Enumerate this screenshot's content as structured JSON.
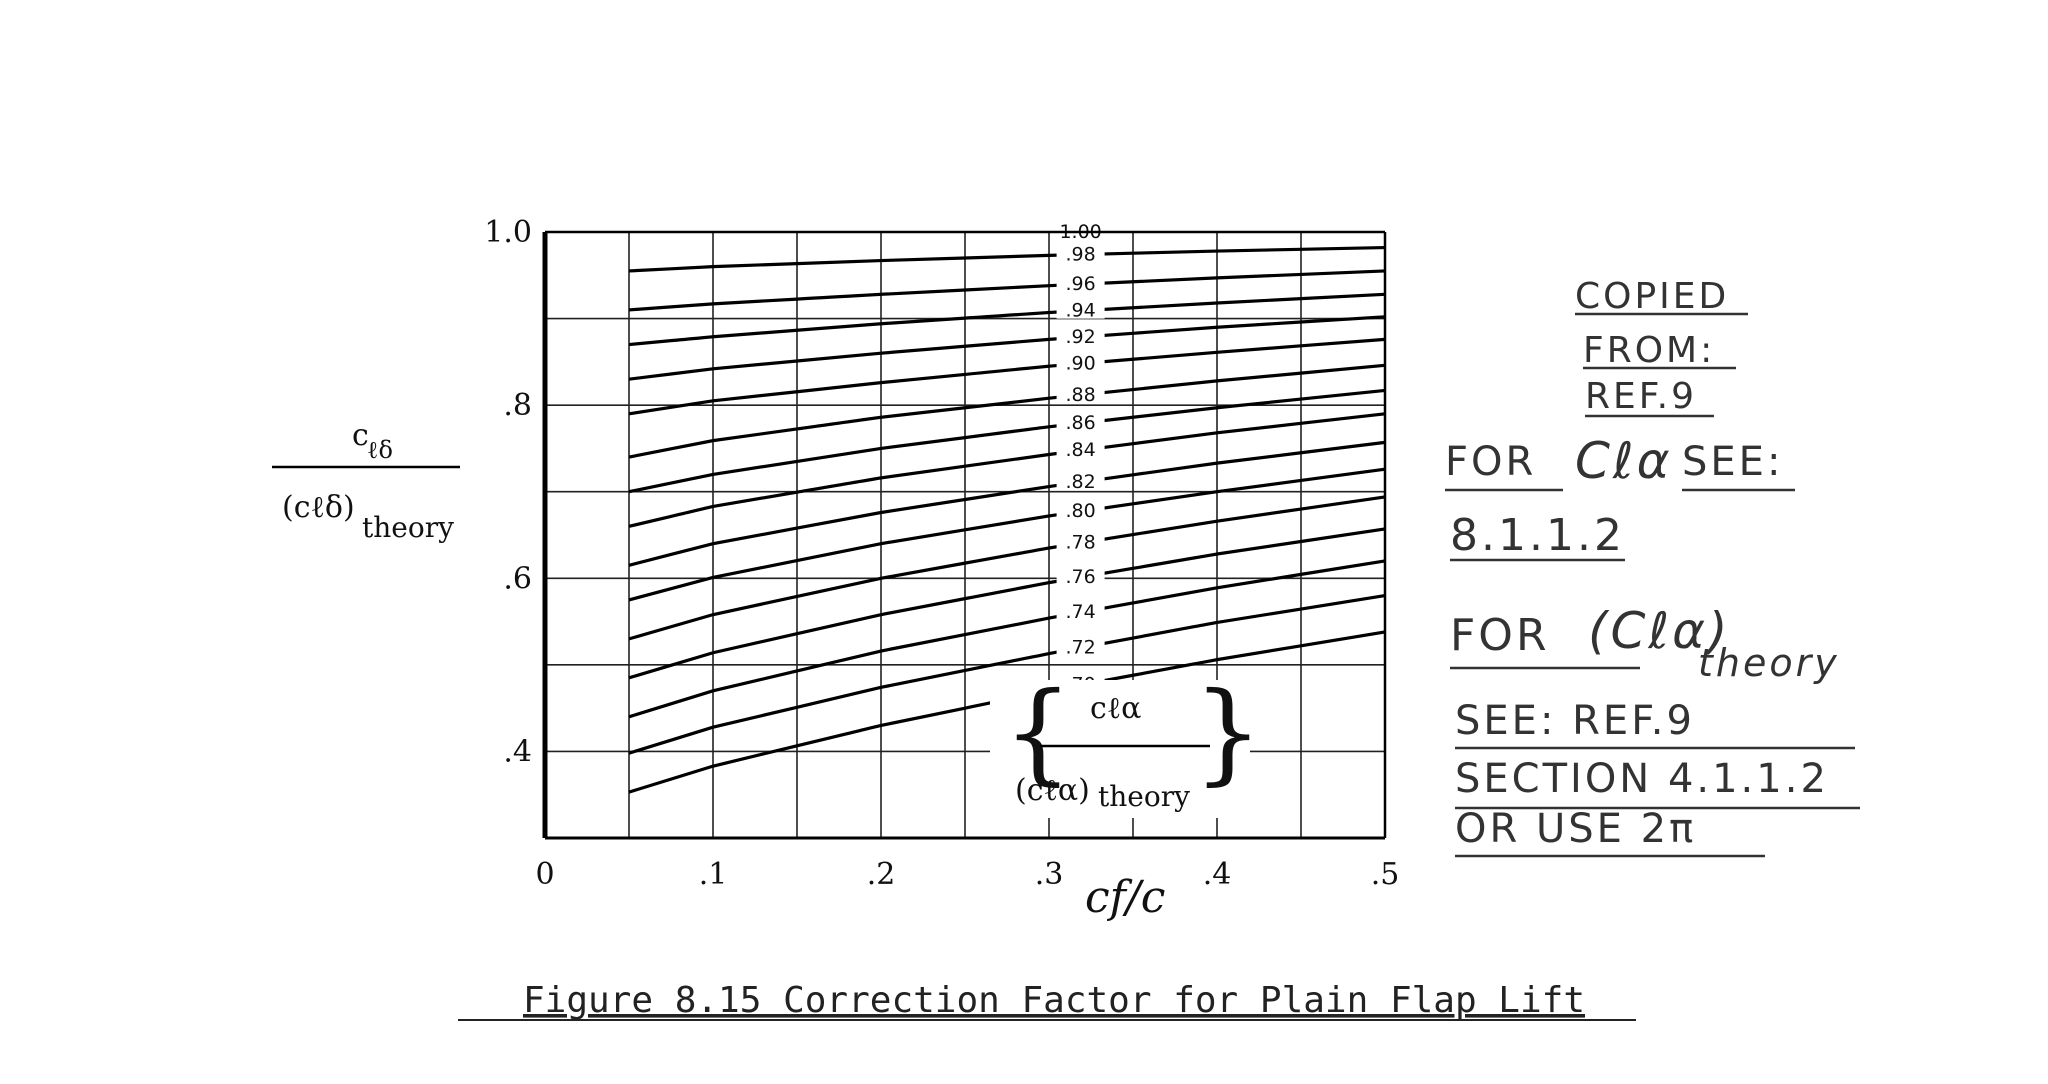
{
  "chart_data": {
    "type": "line",
    "y_label": {
      "numerator": "c",
      "numerator_sub": "ℓδ",
      "denominator": "(cℓδ)",
      "denominator_sub": "theory"
    },
    "x_label": "cf/c",
    "x_ticks": [
      "0",
      ".1",
      ".2",
      ".3",
      ".4",
      ".5"
    ],
    "y_ticks": [
      "1.0",
      ".8",
      ".6",
      ".4"
    ],
    "xlim": [
      0,
      0.5
    ],
    "ylim": [
      0.3,
      1.0
    ],
    "grid": true,
    "parameter_label": {
      "numerator": "cℓα",
      "denominator": "(cℓα)",
      "denominator_sub": "theory"
    },
    "series": [
      {
        "name": "1.00",
        "x": [
          0.05,
          0.5
        ],
        "y": [
          1.0,
          1.0
        ]
      },
      {
        "name": ".98",
        "x": [
          0.05,
          0.1,
          0.2,
          0.3,
          0.4,
          0.5
        ],
        "y": [
          0.955,
          0.96,
          0.967,
          0.973,
          0.978,
          0.982
        ]
      },
      {
        "name": ".96",
        "x": [
          0.05,
          0.1,
          0.2,
          0.3,
          0.4,
          0.5
        ],
        "y": [
          0.91,
          0.917,
          0.928,
          0.938,
          0.947,
          0.955
        ]
      },
      {
        "name": ".94",
        "x": [
          0.05,
          0.1,
          0.2,
          0.3,
          0.4,
          0.5
        ],
        "y": [
          0.87,
          0.879,
          0.894,
          0.907,
          0.918,
          0.928
        ]
      },
      {
        "name": ".92",
        "x": [
          0.05,
          0.1,
          0.2,
          0.3,
          0.4,
          0.5
        ],
        "y": [
          0.83,
          0.842,
          0.86,
          0.876,
          0.89,
          0.902
        ]
      },
      {
        "name": ".90",
        "x": [
          0.05,
          0.1,
          0.2,
          0.3,
          0.4,
          0.5
        ],
        "y": [
          0.79,
          0.805,
          0.826,
          0.845,
          0.861,
          0.876
        ]
      },
      {
        "name": ".88",
        "x": [
          0.05,
          0.1,
          0.2,
          0.3,
          0.4,
          0.5
        ],
        "y": [
          0.74,
          0.759,
          0.786,
          0.808,
          0.828,
          0.846
        ]
      },
      {
        "name": ".86",
        "x": [
          0.05,
          0.1,
          0.2,
          0.3,
          0.4,
          0.5
        ],
        "y": [
          0.7,
          0.72,
          0.75,
          0.775,
          0.797,
          0.817
        ]
      },
      {
        "name": ".84",
        "x": [
          0.05,
          0.1,
          0.2,
          0.3,
          0.4,
          0.5
        ],
        "y": [
          0.66,
          0.683,
          0.716,
          0.743,
          0.768,
          0.79
        ]
      },
      {
        "name": ".82",
        "x": [
          0.05,
          0.1,
          0.2,
          0.3,
          0.4,
          0.5
        ],
        "y": [
          0.615,
          0.64,
          0.676,
          0.706,
          0.733,
          0.757
        ]
      },
      {
        "name": ".80",
        "x": [
          0.05,
          0.1,
          0.2,
          0.3,
          0.4,
          0.5
        ],
        "y": [
          0.575,
          0.601,
          0.64,
          0.672,
          0.7,
          0.726
        ]
      },
      {
        "name": ".78",
        "x": [
          0.05,
          0.1,
          0.2,
          0.3,
          0.4,
          0.5
        ],
        "y": [
          0.53,
          0.558,
          0.6,
          0.635,
          0.666,
          0.694
        ]
      },
      {
        "name": ".76",
        "x": [
          0.05,
          0.1,
          0.2,
          0.3,
          0.4,
          0.5
        ],
        "y": [
          0.485,
          0.514,
          0.558,
          0.595,
          0.628,
          0.657
        ]
      },
      {
        "name": ".74",
        "x": [
          0.05,
          0.1,
          0.2,
          0.3,
          0.4,
          0.5
        ],
        "y": [
          0.44,
          0.47,
          0.516,
          0.554,
          0.589,
          0.62
        ]
      },
      {
        "name": ".72",
        "x": [
          0.05,
          0.1,
          0.2,
          0.3,
          0.4,
          0.5
        ],
        "y": [
          0.398,
          0.428,
          0.474,
          0.513,
          0.549,
          0.58
        ]
      },
      {
        "name": ".70",
        "x": [
          0.05,
          0.1,
          0.2,
          0.3,
          0.4,
          0.5
        ],
        "y": [
          0.353,
          0.383,
          0.43,
          0.47,
          0.506,
          0.538
        ]
      }
    ]
  },
  "notes": {
    "copied_line1": "COPIED",
    "copied_line2": "FROM:",
    "copied_line3": "REF.9",
    "for_cla_prefix": "FOR",
    "for_cla_symbol": "Cℓα",
    "for_cla_suffix": "SEE:",
    "for_cla_ref": "8.1.1.2",
    "for_theory_prefix": "FOR",
    "for_theory_symbol": "(Cℓα)",
    "for_theory_sub": "theory",
    "see_ref9": "SEE:  REF.9",
    "section": "SECTION 4.1.1.2",
    "or_use": "OR USE 2π"
  },
  "caption": "Figure 8.15 Correction Factor for Plain Flap Lift"
}
